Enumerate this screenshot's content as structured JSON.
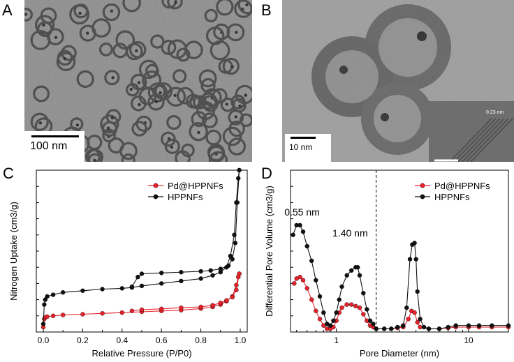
{
  "panels": {
    "a": {
      "letter": "A",
      "scale_bar_label": "100 nm"
    },
    "b": {
      "letter": "B",
      "scale_bar_label": "10 nm",
      "inset_label": "0.23 nm"
    },
    "c": {
      "letter": "C"
    },
    "d": {
      "letter": "D"
    }
  },
  "colors": {
    "red": "#e8212a",
    "black": "#111111"
  },
  "chart_data": [
    {
      "type": "line",
      "panel": "C",
      "xlabel": "Relative Pressure (P/P0)",
      "ylabel": "Nitrogen Uptake (cm3/g)",
      "xlim": [
        0.0,
        1.0
      ],
      "ylim": [
        0,
        1
      ],
      "x_ticks": [
        "0.0",
        "0.2",
        "0.4",
        "0.6",
        "0.8",
        "1.0"
      ],
      "legend_position": "top-right",
      "series": [
        {
          "name": "Pd@HPPNFs",
          "color": "#e8212a",
          "adsorption": [
            [
              0.0,
              0.03
            ],
            [
              0.005,
              0.08
            ],
            [
              0.01,
              0.09
            ],
            [
              0.02,
              0.095
            ],
            [
              0.05,
              0.1
            ],
            [
              0.1,
              0.105
            ],
            [
              0.2,
              0.11
            ],
            [
              0.3,
              0.115
            ],
            [
              0.4,
              0.12
            ],
            [
              0.5,
              0.125
            ],
            [
              0.6,
              0.13
            ],
            [
              0.7,
              0.135
            ],
            [
              0.8,
              0.145
            ],
            [
              0.86,
              0.155
            ],
            [
              0.9,
              0.17
            ],
            [
              0.93,
              0.19
            ],
            [
              0.96,
              0.22
            ],
            [
              0.98,
              0.29
            ],
            [
              0.99,
              0.34
            ],
            [
              0.995,
              0.36
            ]
          ],
          "desorption": [
            [
              0.995,
              0.36
            ],
            [
              0.98,
              0.26
            ],
            [
              0.96,
              0.215
            ],
            [
              0.93,
              0.195
            ],
            [
              0.9,
              0.18
            ],
            [
              0.86,
              0.165
            ],
            [
              0.8,
              0.155
            ],
            [
              0.7,
              0.15
            ],
            [
              0.6,
              0.143
            ],
            [
              0.5,
              0.138
            ],
            [
              0.45,
              0.13
            ]
          ]
        },
        {
          "name": "HPPNFs",
          "color": "#111111",
          "adsorption": [
            [
              0.0,
              0.05
            ],
            [
              0.005,
              0.17
            ],
            [
              0.01,
              0.2
            ],
            [
              0.02,
              0.22
            ],
            [
              0.05,
              0.23
            ],
            [
              0.1,
              0.245
            ],
            [
              0.2,
              0.255
            ],
            [
              0.3,
              0.265
            ],
            [
              0.4,
              0.27
            ],
            [
              0.45,
              0.275
            ],
            [
              0.5,
              0.285
            ],
            [
              0.6,
              0.3
            ],
            [
              0.7,
              0.315
            ],
            [
              0.8,
              0.33
            ],
            [
              0.86,
              0.35
            ],
            [
              0.9,
              0.37
            ],
            [
              0.93,
              0.4
            ],
            [
              0.95,
              0.47
            ],
            [
              0.97,
              0.6
            ],
            [
              0.98,
              0.8
            ],
            [
              0.99,
              0.95
            ],
            [
              0.995,
              1.0
            ]
          ],
          "desorption": [
            [
              0.995,
              1.0
            ],
            [
              0.985,
              0.8
            ],
            [
              0.975,
              0.55
            ],
            [
              0.96,
              0.45
            ],
            [
              0.94,
              0.41
            ],
            [
              0.9,
              0.39
            ],
            [
              0.85,
              0.38
            ],
            [
              0.8,
              0.375
            ],
            [
              0.7,
              0.37
            ],
            [
              0.6,
              0.365
            ],
            [
              0.5,
              0.36
            ],
            [
              0.48,
              0.34
            ],
            [
              0.45,
              0.28
            ]
          ]
        }
      ]
    },
    {
      "type": "line",
      "panel": "D",
      "xlabel": "Pore Diameter (nm)",
      "ylabel": "Differential Pore Volume (cm3/g)",
      "x_scale": "log",
      "xlim": [
        0.45,
        20
      ],
      "ylim": [
        0,
        1
      ],
      "x_ticks": [
        "1",
        "10"
      ],
      "legend_position": "top-right",
      "annotations": [
        {
          "text": "0.55 nm",
          "x": 0.55,
          "y": 0.66
        },
        {
          "text": "1.40 nm",
          "x": 1.4,
          "y": 0.53
        }
      ],
      "reference_line_x": 2.0,
      "series": [
        {
          "name": "Pd@HPPNFs",
          "color": "#e8212a",
          "points": [
            [
              0.48,
              0.3
            ],
            [
              0.5,
              0.33
            ],
            [
              0.53,
              0.34
            ],
            [
              0.56,
              0.32
            ],
            [
              0.6,
              0.27
            ],
            [
              0.65,
              0.2
            ],
            [
              0.7,
              0.13
            ],
            [
              0.75,
              0.08
            ],
            [
              0.8,
              0.04
            ],
            [
              0.85,
              0.02
            ],
            [
              0.9,
              0.02
            ],
            [
              0.95,
              0.03
            ],
            [
              1.0,
              0.07
            ],
            [
              1.05,
              0.12
            ],
            [
              1.1,
              0.15
            ],
            [
              1.2,
              0.17
            ],
            [
              1.3,
              0.17
            ],
            [
              1.4,
              0.16
            ],
            [
              1.5,
              0.15
            ],
            [
              1.6,
              0.11
            ],
            [
              1.7,
              0.07
            ],
            [
              1.8,
              0.04
            ],
            [
              1.9,
              0.03
            ],
            [
              2.0,
              0.02
            ],
            [
              2.3,
              0.02
            ],
            [
              2.6,
              0.02
            ],
            [
              2.9,
              0.025
            ],
            [
              3.2,
              0.03
            ],
            [
              3.5,
              0.08
            ],
            [
              3.7,
              0.13
            ],
            [
              3.9,
              0.12
            ],
            [
              4.1,
              0.06
            ],
            [
              4.3,
              0.03
            ],
            [
              5,
              0.02
            ],
            [
              6,
              0.02
            ],
            [
              7,
              0.025
            ],
            [
              8,
              0.03
            ],
            [
              10,
              0.03
            ],
            [
              12,
              0.03
            ],
            [
              15,
              0.03
            ],
            [
              20,
              0.03
            ]
          ]
        },
        {
          "name": "HPPNFs",
          "color": "#111111",
          "points": [
            [
              0.47,
              0.6
            ],
            [
              0.5,
              0.66
            ],
            [
              0.53,
              0.66
            ],
            [
              0.56,
              0.62
            ],
            [
              0.6,
              0.53
            ],
            [
              0.65,
              0.44
            ],
            [
              0.7,
              0.32
            ],
            [
              0.75,
              0.22
            ],
            [
              0.8,
              0.12
            ],
            [
              0.85,
              0.05
            ],
            [
              0.9,
              0.04
            ],
            [
              0.95,
              0.07
            ],
            [
              1.0,
              0.12
            ],
            [
              1.05,
              0.2
            ],
            [
              1.1,
              0.28
            ],
            [
              1.2,
              0.35
            ],
            [
              1.3,
              0.38
            ],
            [
              1.4,
              0.4
            ],
            [
              1.45,
              0.4
            ],
            [
              1.5,
              0.35
            ],
            [
              1.6,
              0.24
            ],
            [
              1.7,
              0.14
            ],
            [
              1.8,
              0.07
            ],
            [
              1.9,
              0.05
            ],
            [
              2.0,
              0.02
            ],
            [
              2.3,
              0.02
            ],
            [
              2.6,
              0.02
            ],
            [
              2.9,
              0.03
            ],
            [
              3.2,
              0.04
            ],
            [
              3.4,
              0.15
            ],
            [
              3.6,
              0.45
            ],
            [
              3.75,
              0.54
            ],
            [
              3.9,
              0.55
            ],
            [
              4.0,
              0.45
            ],
            [
              4.1,
              0.25
            ],
            [
              4.3,
              0.08
            ],
            [
              4.6,
              0.03
            ],
            [
              5,
              0.02
            ],
            [
              6,
              0.02
            ],
            [
              7,
              0.03
            ],
            [
              8,
              0.04
            ],
            [
              10,
              0.04
            ],
            [
              12,
              0.04
            ],
            [
              15,
              0.04
            ],
            [
              20,
              0.04
            ]
          ]
        }
      ]
    }
  ]
}
